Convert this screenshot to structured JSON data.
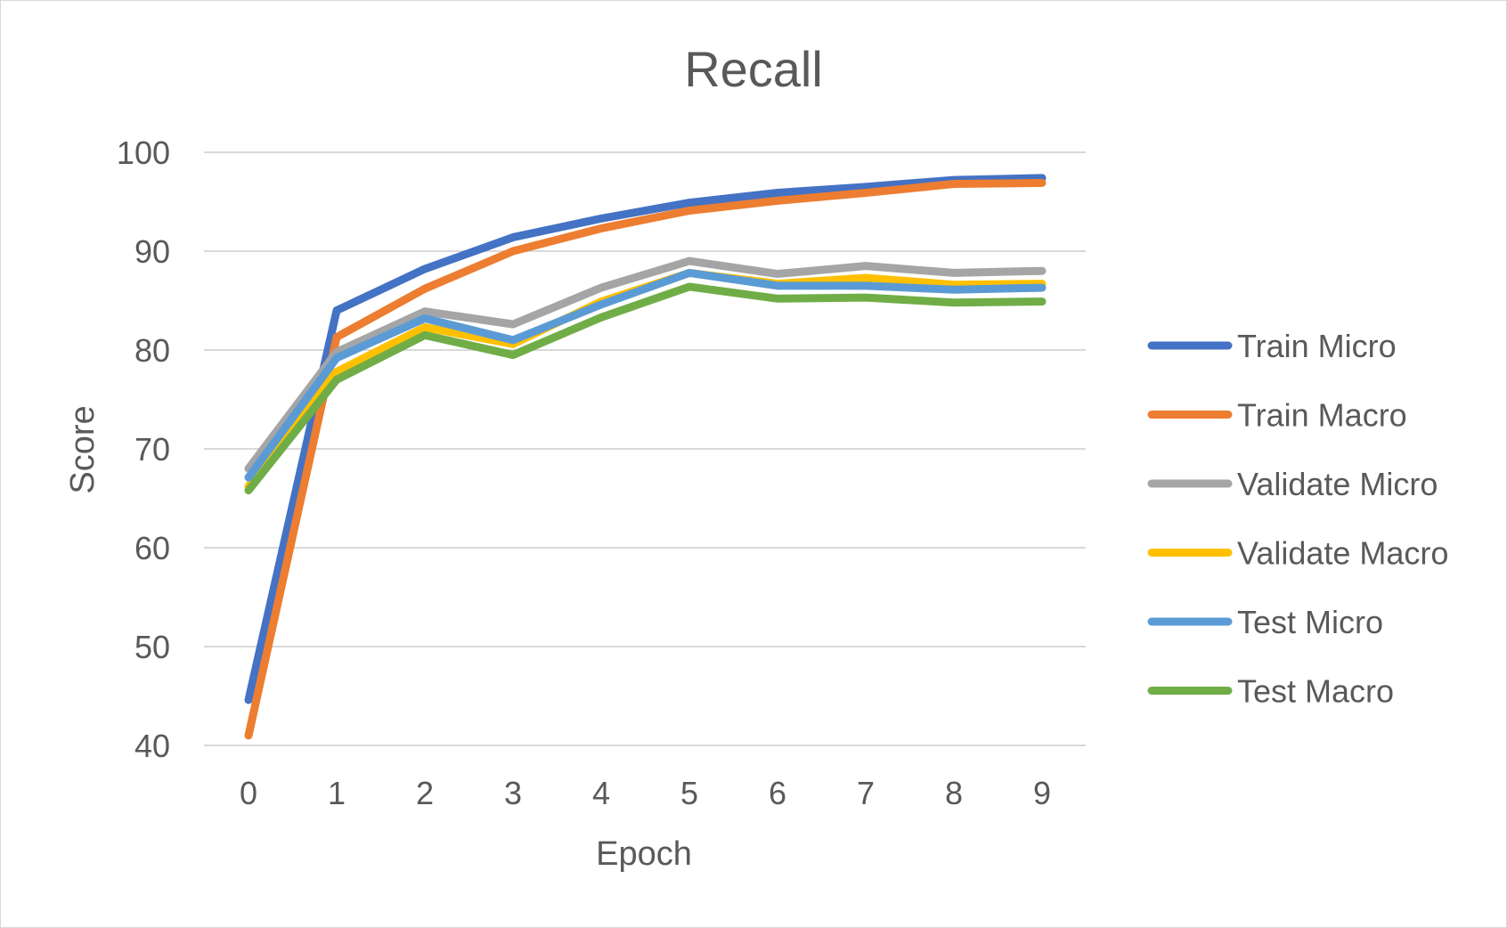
{
  "chart_data": {
    "type": "line",
    "title": "Recall",
    "xlabel": "Epoch",
    "ylabel": "Score",
    "categories": [
      "0",
      "1",
      "2",
      "3",
      "4",
      "5",
      "6",
      "7",
      "8",
      "9"
    ],
    "ylim": [
      40,
      100
    ],
    "yticks": [
      40,
      50,
      60,
      70,
      80,
      90,
      100
    ],
    "grid": "horizontal",
    "legend": "right",
    "series": [
      {
        "name": "Train Micro",
        "color": "#4472C4",
        "values": [
          44.6,
          84.0,
          88.2,
          91.4,
          93.3,
          94.9,
          95.9,
          96.5,
          97.2,
          97.4
        ]
      },
      {
        "name": "Train Macro",
        "color": "#ED7D31",
        "values": [
          41.0,
          81.3,
          86.2,
          90.0,
          92.3,
          94.1,
          95.1,
          95.9,
          96.8,
          96.9
        ]
      },
      {
        "name": "Validate Micro",
        "color": "#A5A5A5",
        "values": [
          68.0,
          79.8,
          83.9,
          82.6,
          86.3,
          89.0,
          87.7,
          88.5,
          87.8,
          88.0
        ]
      },
      {
        "name": "Validate Macro",
        "color": "#FFC000",
        "values": [
          66.2,
          77.8,
          82.3,
          80.6,
          84.9,
          87.8,
          86.7,
          87.3,
          86.6,
          86.7
        ]
      },
      {
        "name": "Test Micro",
        "color": "#5B9BD5",
        "values": [
          67.1,
          79.2,
          83.2,
          81.0,
          84.6,
          87.8,
          86.5,
          86.5,
          86.1,
          86.3
        ]
      },
      {
        "name": "Test Macro",
        "color": "#70AD47",
        "values": [
          65.8,
          77.0,
          81.5,
          79.5,
          83.3,
          86.4,
          85.2,
          85.3,
          84.8,
          84.9
        ]
      }
    ]
  }
}
